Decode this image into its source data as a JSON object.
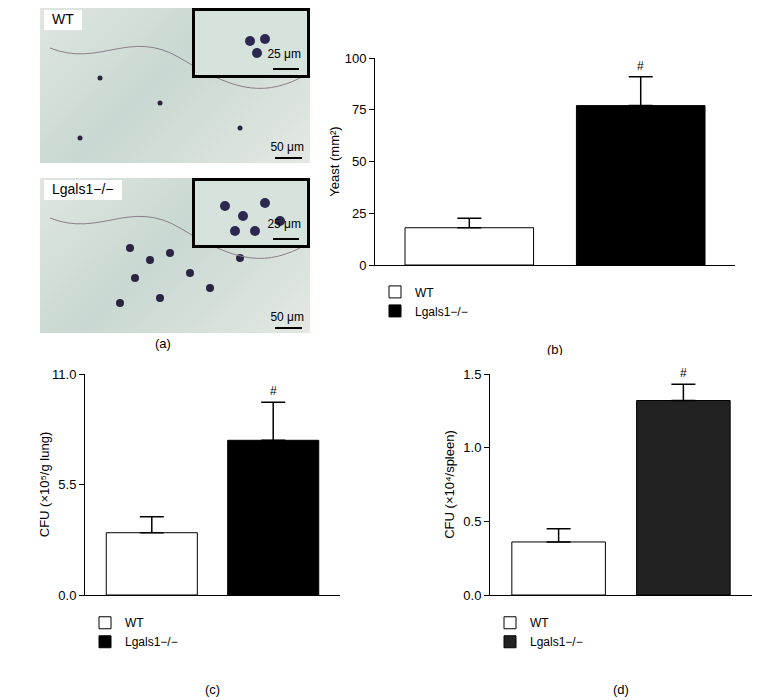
{
  "figure_panel_a": {
    "panel": "(a)",
    "images": [
      {
        "label": "WT",
        "inset_scale": "25 μm",
        "scale": "50 μm"
      },
      {
        "label": "Lgals1−/−",
        "inset_scale": "25 μm",
        "scale": "50 μm"
      }
    ]
  },
  "chart_data": [
    {
      "type": "bar",
      "panel": "(b)",
      "y_label": "Yeast (mm²)",
      "series": [
        {
          "name": "WT",
          "color": "#ffffff",
          "values": [
            18
          ],
          "errors": [
            4.6
          ]
        },
        {
          "name": "Lgals1−/−",
          "color": "#000000",
          "values": [
            77
          ],
          "errors": [
            14
          ]
        }
      ],
      "ylim": [
        0,
        100
      ],
      "yticks": [
        0,
        25,
        50,
        75,
        100
      ],
      "annotations": [
        {
          "text": "#",
          "series": "Lgals1−/−"
        }
      ],
      "grid": false,
      "legend": "bottom left",
      "tick_labels": "y"
    },
    {
      "type": "bar",
      "panel": "(c)",
      "y_label": "CFU (×10⁵/g lung)",
      "series": [
        {
          "name": "WT",
          "color": "#ffffff",
          "values": [
            3.1
          ],
          "errors": [
            0.8
          ]
        },
        {
          "name": "Lgals1−/−",
          "color": "#000000",
          "values": [
            7.7
          ],
          "errors": [
            1.9
          ]
        }
      ],
      "ylim": [
        0,
        11
      ],
      "yticks": [
        {
          "value": 0,
          "label": "0.0"
        },
        5.5,
        {
          "value": 11,
          "label": "11.0"
        }
      ],
      "annotations": [
        {
          "text": "#",
          "series": "Lgals1−/−"
        }
      ],
      "grid": false,
      "legend": "bottom left",
      "tick_labels": "y"
    },
    {
      "type": "bar",
      "panel": "(d)",
      "y_label": "CFU (×10⁴/spleen)",
      "series": [
        {
          "name": "WT",
          "color": "#ffffff",
          "values": [
            0.36
          ],
          "errors": [
            0.09
          ]
        },
        {
          "name": "Lgals1−/−",
          "color": "#222222",
          "values": [
            1.32
          ],
          "errors": [
            0.11
          ]
        }
      ],
      "ylim": [
        0,
        1.5
      ],
      "yticks": [
        {
          "value": 0,
          "label": "0.0"
        },
        {
          "value": 0.5,
          "label": "0.5"
        },
        {
          "value": 1,
          "label": "1.0"
        },
        {
          "value": 1.5,
          "label": "1.5"
        }
      ],
      "annotations": [
        {
          "text": "#",
          "series": "Lgals1−/−"
        }
      ],
      "grid": false,
      "legend": "bottom left",
      "tick_labels": "y"
    }
  ]
}
